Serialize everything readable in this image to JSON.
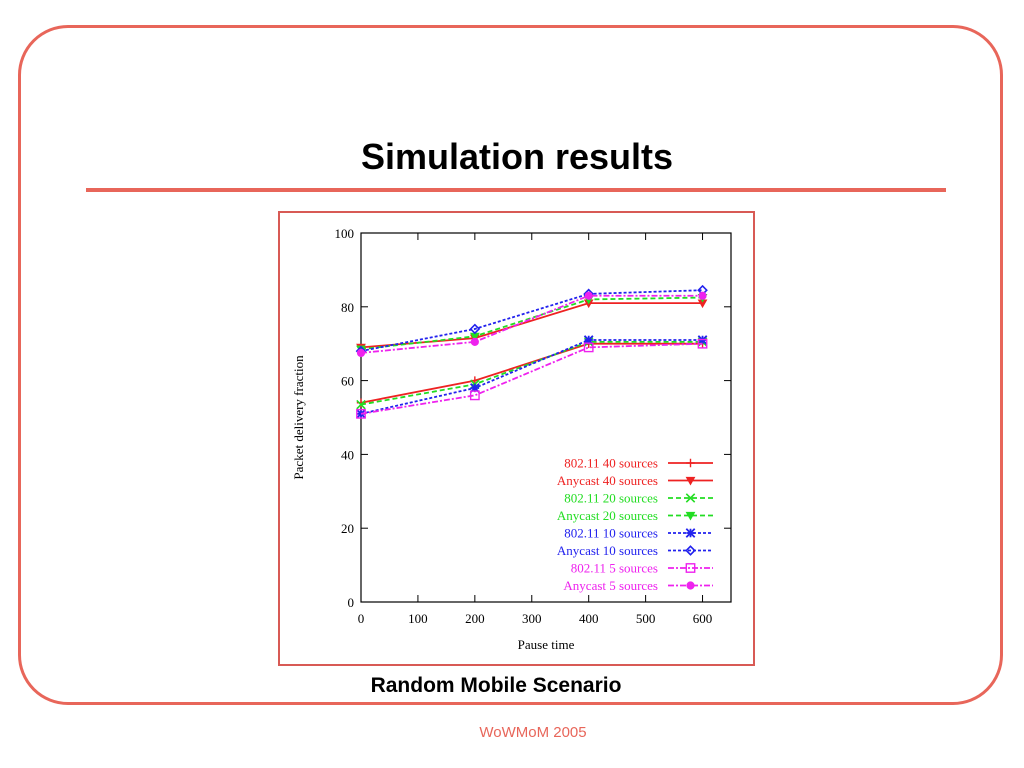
{
  "slide": {
    "title": "Simulation results",
    "caption": "Random Mobile Scenario",
    "footer": "WoWMoM 2005",
    "accent_color": "#e8665a"
  },
  "chart_data": {
    "type": "line",
    "xlabel": "Pause time",
    "ylabel": "Packet delivery fraction",
    "x": [
      0,
      200,
      400,
      600
    ],
    "xlim": [
      0,
      650
    ],
    "ylim": [
      0,
      100
    ],
    "xticks": [
      0,
      100,
      200,
      300,
      400,
      500,
      600
    ],
    "yticks": [
      0,
      20,
      40,
      60,
      80,
      100
    ],
    "grid": false,
    "legend_position": "bottom-right",
    "series": [
      {
        "name": "802.11 40 sources",
        "values": [
          54,
          60,
          70,
          70
        ],
        "color": "#ee2222",
        "dash": "",
        "marker": "plus"
      },
      {
        "name": "Anycast 40 sources",
        "values": [
          69,
          71.5,
          81,
          81
        ],
        "color": "#ee2222",
        "dash": "",
        "marker": "triangle-down"
      },
      {
        "name": "802.11 20 sources",
        "values": [
          53.5,
          59,
          70.5,
          70.5
        ],
        "color": "#22dd22",
        "dash": "5,3",
        "marker": "cross"
      },
      {
        "name": "Anycast 20 sources",
        "values": [
          68.5,
          72,
          82,
          82.5
        ],
        "color": "#22dd22",
        "dash": "5,3",
        "marker": "triangle-down"
      },
      {
        "name": "802.11 10 sources",
        "values": [
          51,
          58,
          71,
          71
        ],
        "color": "#2222ee",
        "dash": "3,2",
        "marker": "star"
      },
      {
        "name": "Anycast 10 sources",
        "values": [
          68,
          74,
          83.5,
          84.5
        ],
        "color": "#2222ee",
        "dash": "3,2",
        "marker": "diamond"
      },
      {
        "name": "802.11 5 sources",
        "values": [
          51,
          56,
          69,
          70
        ],
        "color": "#ee22ee",
        "dash": "6,2,2,2",
        "marker": "square"
      },
      {
        "name": "Anycast 5 sources",
        "values": [
          67.5,
          70.5,
          83,
          83
        ],
        "color": "#ee22ee",
        "dash": "6,2,2,2",
        "marker": "circle"
      }
    ]
  }
}
